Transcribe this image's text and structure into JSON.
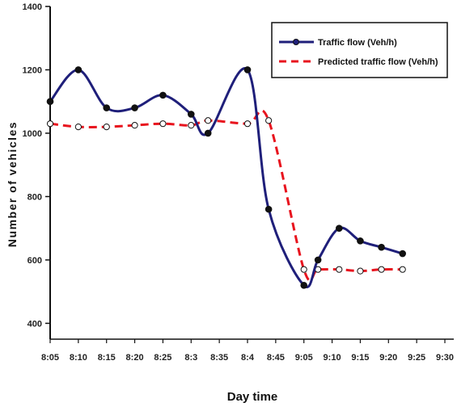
{
  "chart_data": {
    "type": "line",
    "xlabel": "Day time",
    "ylabel": "Number of vehicles",
    "categories": [
      "8:05",
      "8:10",
      "8:15",
      "8:20",
      "8:25",
      "8:3",
      "8:35",
      "8:4",
      "8:45",
      "9:05",
      "9:10",
      "9:15",
      "9:20",
      "9:25",
      "9:30"
    ],
    "yticks": [
      400,
      600,
      800,
      1000,
      1200,
      1400
    ],
    "ylim": [
      350,
      1400
    ],
    "grid": false,
    "legend_position": "top-right",
    "series": [
      {
        "name": "Traffic flow (Veh/h)",
        "color": "#1f1f7a",
        "marker": "filled-circle",
        "line_style": "solid",
        "x_positions": [
          0,
          1,
          2,
          3,
          4,
          5,
          5.6,
          7,
          7.75,
          9,
          9.5,
          10.25,
          11,
          11.75,
          12.5
        ],
        "values": [
          1100,
          1200,
          1080,
          1080,
          1120,
          1060,
          1000,
          1200,
          760,
          520,
          600,
          700,
          660,
          640,
          620
        ]
      },
      {
        "name": "Predicted traffic flow (Veh/h)",
        "color": "#e8141e",
        "marker": "open-circle",
        "line_style": "dashed",
        "x_positions": [
          0,
          1,
          2,
          3,
          4,
          5,
          5.6,
          7,
          7.75,
          9,
          9.5,
          10.25,
          11,
          11.75,
          12.5
        ],
        "values": [
          1030,
          1020,
          1020,
          1025,
          1030,
          1025,
          1040,
          1030,
          1040,
          570,
          570,
          570,
          565,
          570,
          570
        ]
      }
    ]
  }
}
